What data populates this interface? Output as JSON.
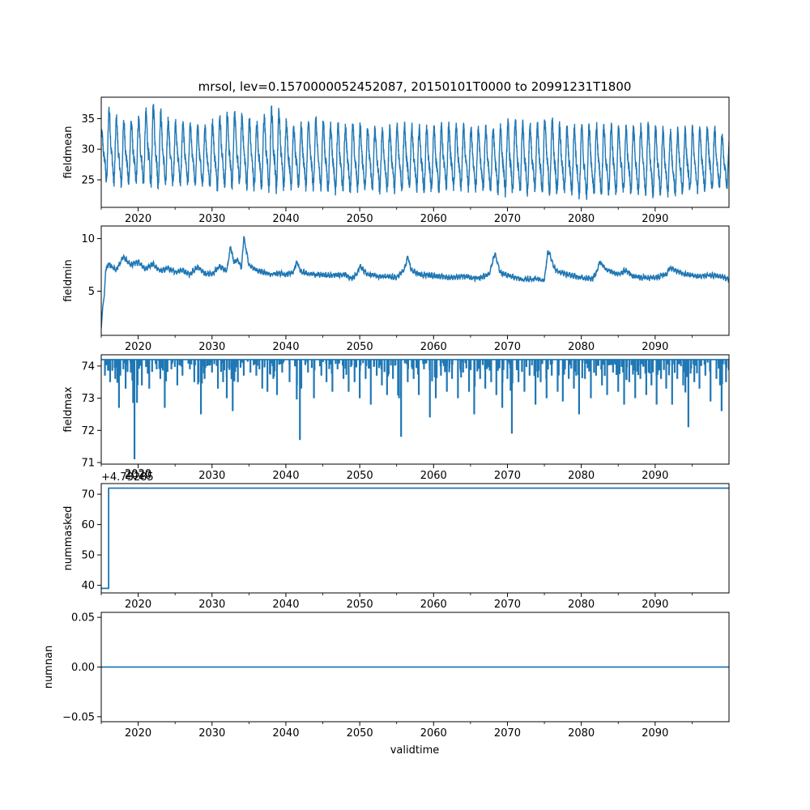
{
  "title": "mrsol, lev=0.1570000052452087, 20150101T0000 to 20991231T1800",
  "xlabel": "validtime",
  "colors": {
    "series": "#1f77b4",
    "axes": "#000000",
    "background": "#ffffff"
  },
  "chart_data": [
    {
      "type": "line",
      "ylabel": "fieldmean",
      "xlim": [
        2015.0,
        2100.0
      ],
      "ylim": [
        20.5,
        38.5
      ],
      "xticks": [
        "2020",
        "2030",
        "2040",
        "2050",
        "2060",
        "2070",
        "2080",
        "2090"
      ],
      "yticks": [
        "25",
        "30",
        "35"
      ],
      "series": [
        {
          "x": [
            2015.0,
            2016.0,
            2017.5,
            2020.0,
            2022.0,
            2024.0,
            2026.5,
            2029.0,
            2031.0,
            2033.5,
            2036.0,
            2038.5,
            2041.0,
            2044.0,
            2047.0,
            2050.0,
            2053.0,
            2056.0,
            2059.0,
            2062.0,
            2065.0,
            2068.0,
            2071.0,
            2073.5,
            2075.5,
            2078.0,
            2080.5,
            2083.0,
            2086.0,
            2089.0,
            2092.0,
            2095.0,
            2098.0,
            2100.0
          ],
          "y": [
            29.5,
            36.5,
            31.0,
            28.5,
            37.5,
            31.5,
            29.5,
            28.5,
            30.0,
            34.0,
            29.0,
            36.5,
            28.0,
            30.0,
            28.5,
            29.0,
            28.5,
            30.0,
            28.5,
            29.5,
            29.0,
            28.5,
            30.0,
            28.5,
            34.0,
            28.0,
            28.5,
            29.0,
            28.5,
            29.0,
            28.0,
            28.5,
            29.0,
            26.0
          ],
          "min_envelope": [
            24.0,
            23.5,
            23.0,
            23.5,
            22.5,
            23.0,
            23.5,
            23.0,
            22.5,
            23.0,
            22.5,
            22.0,
            23.0,
            22.5,
            22.0,
            22.5,
            22.0,
            22.5,
            22.0,
            22.5,
            22.5,
            22.0,
            21.5,
            22.0,
            21.5,
            22.0,
            21.0,
            21.5,
            22.0,
            21.5,
            21.5,
            22.0,
            22.5,
            23.0
          ],
          "max_envelope": [
            33.0,
            37.5,
            35.0,
            35.5,
            38.0,
            35.5,
            34.5,
            34.0,
            36.0,
            36.5,
            35.0,
            37.8,
            34.0,
            35.5,
            34.5,
            34.5,
            34.0,
            34.5,
            34.0,
            34.5,
            34.0,
            34.0,
            35.5,
            34.5,
            35.8,
            34.0,
            34.5,
            34.5,
            34.0,
            34.5,
            33.5,
            34.0,
            34.0,
            32.0
          ]
        }
      ]
    },
    {
      "type": "line",
      "ylabel": "fieldmin",
      "xlim": [
        2015.0,
        2100.0
      ],
      "ylim": [
        0.8,
        11.2
      ],
      "xticks": [
        "2020",
        "2030",
        "2040",
        "2050",
        "2060",
        "2070",
        "2080",
        "2090"
      ],
      "yticks": [
        "5",
        "10"
      ],
      "series": [
        {
          "x": [
            2015.0,
            2015.2,
            2015.4,
            2015.6,
            2016.0,
            2017.0,
            2018.0,
            2019.0,
            2020.0,
            2021.0,
            2022.0,
            2023.0,
            2024.0,
            2025.0,
            2026.0,
            2027.0,
            2028.0,
            2029.0,
            2030.0,
            2031.0,
            2032.0,
            2032.5,
            2033.0,
            2033.5,
            2034.0,
            2034.3,
            2035.0,
            2036.0,
            2037.0,
            2038.0,
            2039.0,
            2040.0,
            2041.0,
            2041.5,
            2042.0,
            2043.0,
            2044.0,
            2046.0,
            2048.0,
            2049.0,
            2049.7,
            2050.0,
            2051.0,
            2053.0,
            2055.0,
            2056.0,
            2056.5,
            2057.0,
            2058.0,
            2060.0,
            2062.0,
            2064.0,
            2066.0,
            2067.5,
            2068.3,
            2069.0,
            2070.0,
            2072.0,
            2074.0,
            2075.0,
            2075.5,
            2076.5,
            2078.0,
            2080.0,
            2081.5,
            2082.0,
            2082.5,
            2083.5,
            2085.0,
            2086.0,
            2087.0,
            2088.0,
            2090.0,
            2091.5,
            2092.0,
            2094.0,
            2096.0,
            2098.0,
            2099.0,
            2100.0
          ],
          "y": [
            1.5,
            3.5,
            4.5,
            7.0,
            7.6,
            7.0,
            8.3,
            7.5,
            7.8,
            7.1,
            7.6,
            6.9,
            7.2,
            6.8,
            7.0,
            6.6,
            7.3,
            6.7,
            6.6,
            7.4,
            6.9,
            9.2,
            7.7,
            8.0,
            7.2,
            10.2,
            7.5,
            7.0,
            6.8,
            6.6,
            6.7,
            6.6,
            6.8,
            7.8,
            6.8,
            6.7,
            6.6,
            6.5,
            6.6,
            6.2,
            6.8,
            7.4,
            6.6,
            6.4,
            6.3,
            7.0,
            8.2,
            7.0,
            6.6,
            6.5,
            6.3,
            6.4,
            6.2,
            6.6,
            8.6,
            6.8,
            6.5,
            6.1,
            6.2,
            6.1,
            8.9,
            7.0,
            6.6,
            6.3,
            6.2,
            6.7,
            7.8,
            7.0,
            6.6,
            7.0,
            6.4,
            6.3,
            6.3,
            6.6,
            7.2,
            6.6,
            6.4,
            6.5,
            6.4,
            6.1
          ]
        }
      ]
    },
    {
      "type": "line",
      "ylabel": "fieldmax",
      "xlim": [
        2015.0,
        2100.0
      ],
      "ylim": [
        70.95,
        74.35
      ],
      "xticks": [
        "2020",
        "2030",
        "2040",
        "2050",
        "2060",
        "2070",
        "2080",
        "2090"
      ],
      "yticks": [
        "71",
        "72",
        "73",
        "74"
      ],
      "baseline": 74.2,
      "dips": [
        [
          2015.5,
          73.7
        ],
        [
          2016.2,
          73.5
        ],
        [
          2016.9,
          73.6
        ],
        [
          2017.4,
          72.7
        ],
        [
          2018.0,
          73.9
        ],
        [
          2018.3,
          73.3
        ],
        [
          2019.0,
          73.8
        ],
        [
          2019.5,
          71.1
        ],
        [
          2020.5,
          73.4
        ],
        [
          2021.5,
          73.3
        ],
        [
          2022.5,
          73.9
        ],
        [
          2023.0,
          73.6
        ],
        [
          2023.6,
          72.7
        ],
        [
          2024.5,
          73.9
        ],
        [
          2025.3,
          73.4
        ],
        [
          2026.0,
          73.7
        ],
        [
          2027.0,
          73.9
        ],
        [
          2027.6,
          73.5
        ],
        [
          2028.5,
          72.5
        ],
        [
          2029.0,
          73.6
        ],
        [
          2030.0,
          73.8
        ],
        [
          2030.8,
          73.3
        ],
        [
          2031.5,
          73.5
        ],
        [
          2032.0,
          73.0
        ],
        [
          2032.8,
          72.6
        ],
        [
          2033.5,
          73.5
        ],
        [
          2034.3,
          73.7
        ],
        [
          2035.2,
          73.8
        ],
        [
          2036.0,
          73.7
        ],
        [
          2036.8,
          73.3
        ],
        [
          2037.5,
          73.2
        ],
        [
          2038.3,
          73.6
        ],
        [
          2038.8,
          73.1
        ],
        [
          2039.5,
          73.8
        ],
        [
          2040.5,
          73.5
        ],
        [
          2041.5,
          73.4
        ],
        [
          2041.9,
          71.7
        ],
        [
          2043.0,
          73.8
        ],
        [
          2043.8,
          73.0
        ],
        [
          2044.8,
          73.7
        ],
        [
          2045.5,
          73.5
        ],
        [
          2046.3,
          73.2
        ],
        [
          2047.0,
          73.9
        ],
        [
          2047.8,
          73.6
        ],
        [
          2048.5,
          73.2
        ],
        [
          2049.3,
          73.5
        ],
        [
          2050.0,
          73.0
        ],
        [
          2050.8,
          73.6
        ],
        [
          2051.5,
          72.8
        ],
        [
          2052.3,
          73.7
        ],
        [
          2053.0,
          73.4
        ],
        [
          2053.7,
          73.1
        ],
        [
          2054.5,
          73.6
        ],
        [
          2055.6,
          71.8
        ],
        [
          2056.5,
          73.5
        ],
        [
          2057.3,
          73.6
        ],
        [
          2058.0,
          73.1
        ],
        [
          2058.7,
          73.9
        ],
        [
          2059.5,
          72.4
        ],
        [
          2060.3,
          73.0
        ],
        [
          2061.0,
          73.7
        ],
        [
          2061.8,
          73.2
        ],
        [
          2062.5,
          73.6
        ],
        [
          2063.3,
          73.0
        ],
        [
          2064.0,
          73.8
        ],
        [
          2064.8,
          73.2
        ],
        [
          2065.5,
          72.5
        ],
        [
          2066.3,
          73.6
        ],
        [
          2067.0,
          73.3
        ],
        [
          2067.8,
          73.5
        ],
        [
          2068.5,
          73.1
        ],
        [
          2069.3,
          72.7
        ],
        [
          2070.0,
          73.6
        ],
        [
          2070.6,
          71.9
        ],
        [
          2071.5,
          73.5
        ],
        [
          2072.3,
          73.2
        ],
        [
          2073.0,
          73.7
        ],
        [
          2073.8,
          72.8
        ],
        [
          2074.5,
          73.5
        ],
        [
          2075.3,
          73.0
        ],
        [
          2076.0,
          73.7
        ],
        [
          2076.8,
          73.2
        ],
        [
          2077.5,
          72.9
        ],
        [
          2078.3,
          73.6
        ],
        [
          2079.0,
          73.3
        ],
        [
          2079.7,
          72.5
        ],
        [
          2080.5,
          73.6
        ],
        [
          2081.3,
          73.0
        ],
        [
          2082.0,
          73.7
        ],
        [
          2082.8,
          73.4
        ],
        [
          2083.5,
          73.1
        ],
        [
          2084.3,
          73.8
        ],
        [
          2085.0,
          73.2
        ],
        [
          2085.8,
          72.8
        ],
        [
          2086.5,
          73.5
        ],
        [
          2087.3,
          73.0
        ],
        [
          2088.0,
          73.6
        ],
        [
          2088.8,
          73.1
        ],
        [
          2089.5,
          73.4
        ],
        [
          2090.2,
          72.8
        ],
        [
          2090.8,
          73.6
        ],
        [
          2091.5,
          73.3
        ],
        [
          2092.3,
          72.8
        ],
        [
          2093.0,
          73.6
        ],
        [
          2093.8,
          73.4
        ],
        [
          2094.5,
          72.1
        ],
        [
          2095.3,
          73.5
        ],
        [
          2096.0,
          73.3
        ],
        [
          2096.8,
          73.7
        ],
        [
          2097.5,
          72.9
        ],
        [
          2098.3,
          73.6
        ],
        [
          2099.0,
          72.6
        ],
        [
          2099.6,
          73.5
        ]
      ]
    },
    {
      "type": "line",
      "ylabel": "nummasked",
      "offset_text": "+4.73285",
      "offset_overlap_tick": "2020",
      "xlim": [
        2015.0,
        2100.0
      ],
      "ylim": [
        37.5,
        73.5
      ],
      "xticks": [
        "2020",
        "2030",
        "2040",
        "2050",
        "2060",
        "2070",
        "2080",
        "2090"
      ],
      "yticks": [
        "40",
        "50",
        "60",
        "70"
      ],
      "series": [
        {
          "x": [
            2015.0,
            2016.0,
            2016.0,
            2100.0
          ],
          "y": [
            39,
            39,
            72,
            72
          ]
        }
      ]
    },
    {
      "type": "line",
      "ylabel": "numnan",
      "xlim": [
        2015.0,
        2100.0
      ],
      "ylim": [
        -0.055,
        0.055
      ],
      "xticks": [
        "2020",
        "2030",
        "2040",
        "2050",
        "2060",
        "2070",
        "2080",
        "2090"
      ],
      "yticks": [
        "−0.05",
        "0.00",
        "0.05"
      ],
      "series": [
        {
          "x": [
            2015.0,
            2100.0
          ],
          "y": [
            0.0,
            0.0
          ]
        }
      ]
    }
  ]
}
